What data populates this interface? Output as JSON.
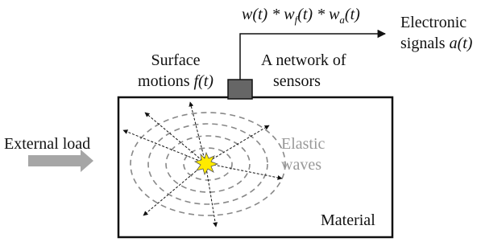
{
  "formula": {
    "part1": "w(t) * w",
    "sub1": "f",
    "part2": "(t) * w",
    "sub2": "a",
    "part3": "(t)"
  },
  "output": {
    "line1": "Electronic",
    "line2_text": "signals ",
    "line2_math": "a(t)"
  },
  "surface": {
    "line1": "Surface",
    "line2_text": "motions ",
    "line2_math": "f(t)"
  },
  "sensors": {
    "line1": "A network of",
    "line2": "sensors"
  },
  "load": "External load",
  "waves": {
    "line1": "Elastic",
    "line2": "waves"
  },
  "material": "Material"
}
